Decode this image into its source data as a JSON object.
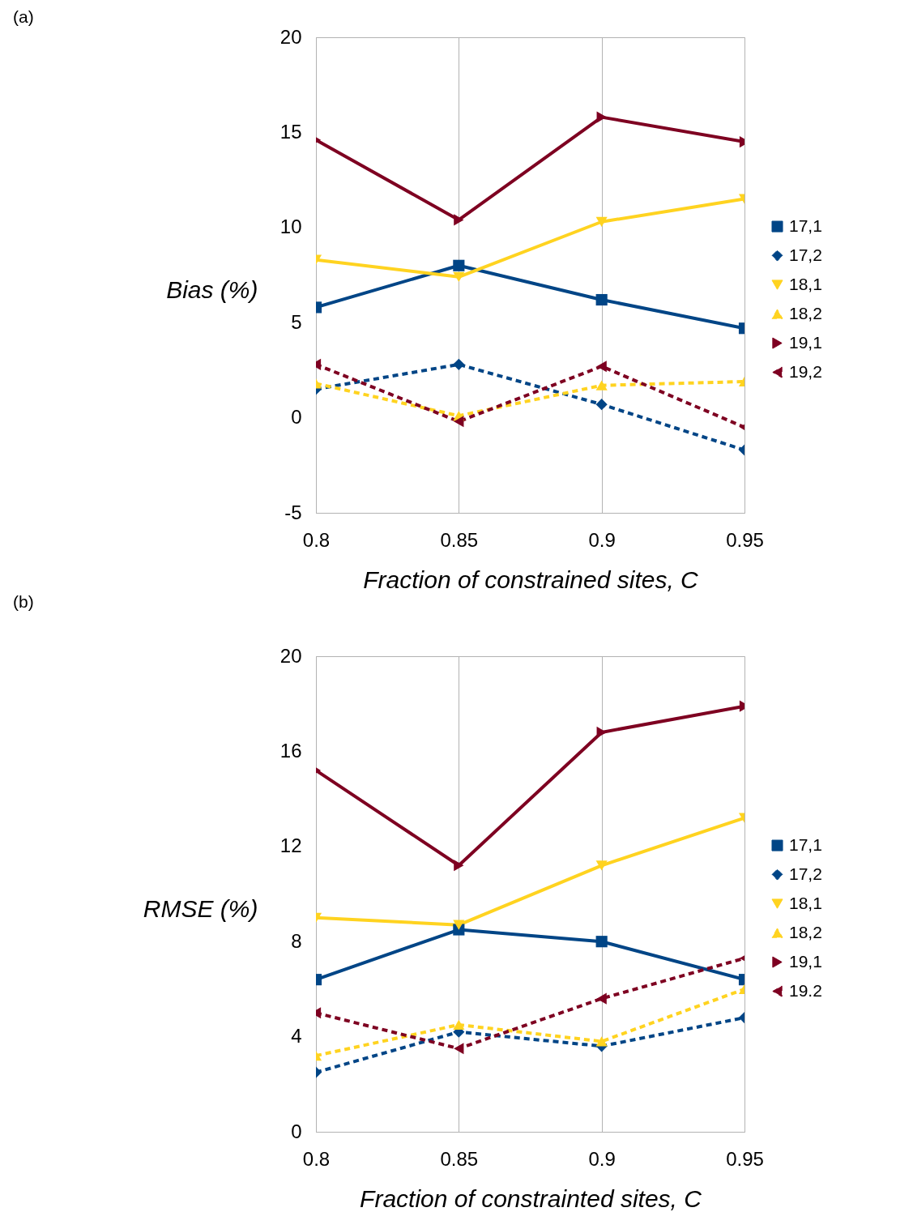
{
  "chart_data": [
    {
      "type": "line",
      "annotations": [
        "(a)"
      ],
      "xlabel": "Fraction of constrained sites, C",
      "ylabel": "Bias (%)",
      "x": [
        0.8,
        0.85,
        0.9,
        0.95
      ],
      "xlim": [
        0.8,
        0.95
      ],
      "xticks": [
        0.8,
        0.85,
        0.9,
        0.95
      ],
      "ylim": [
        -5,
        20
      ],
      "yticks": [
        -5,
        0,
        5,
        10,
        15,
        20
      ],
      "grid": "x",
      "legend": "right",
      "series": [
        {
          "name": "17,1",
          "color": "#004586",
          "marker": "square",
          "line_style": "solid",
          "values": [
            5.8,
            8.0,
            6.2,
            4.7
          ]
        },
        {
          "name": "17,2",
          "color": "#004586",
          "marker": "diamond",
          "line_style": "dashed",
          "values": [
            1.5,
            2.8,
            0.7,
            -1.7
          ]
        },
        {
          "name": "18,1",
          "color": "#ffd320",
          "marker": "triangle-down",
          "line_style": "solid",
          "values": [
            8.3,
            7.4,
            10.3,
            11.5
          ]
        },
        {
          "name": "18,2",
          "color": "#ffd320",
          "marker": "triangle-up",
          "line_style": "dashed",
          "values": [
            1.8,
            0.1,
            1.7,
            1.9
          ]
        },
        {
          "name": "19,1",
          "color": "#7e0021",
          "marker": "triangle-right",
          "line_style": "solid",
          "values": [
            14.6,
            10.4,
            15.8,
            14.5
          ]
        },
        {
          "name": "19,2",
          "color": "#7e0021",
          "marker": "triangle-left",
          "line_style": "dashed",
          "values": [
            2.8,
            -0.2,
            2.7,
            -0.5
          ]
        }
      ]
    },
    {
      "type": "line",
      "annotations": [
        "(b)"
      ],
      "xlabel": "Fraction of constrainted sites, C",
      "ylabel": "RMSE (%)",
      "x": [
        0.8,
        0.85,
        0.9,
        0.95
      ],
      "xlim": [
        0.8,
        0.95
      ],
      "xticks": [
        0.8,
        0.85,
        0.9,
        0.95
      ],
      "ylim": [
        0,
        20
      ],
      "yticks": [
        0,
        4,
        8,
        12,
        16,
        20
      ],
      "grid": "x",
      "legend": "right",
      "series": [
        {
          "name": "17,1",
          "color": "#004586",
          "marker": "square",
          "line_style": "solid",
          "values": [
            6.4,
            8.5,
            8.0,
            6.4
          ]
        },
        {
          "name": "17,2",
          "color": "#004586",
          "marker": "diamond",
          "line_style": "dashed",
          "values": [
            2.5,
            4.2,
            3.6,
            4.8
          ]
        },
        {
          "name": "18,1",
          "color": "#ffd320",
          "marker": "triangle-down",
          "line_style": "solid",
          "values": [
            9.0,
            8.7,
            11.2,
            13.2
          ]
        },
        {
          "name": "18,2",
          "color": "#ffd320",
          "marker": "triangle-up",
          "line_style": "dashed",
          "values": [
            3.2,
            4.5,
            3.8,
            6.0
          ]
        },
        {
          "name": "19,1",
          "color": "#7e0021",
          "marker": "triangle-right",
          "line_style": "solid",
          "values": [
            15.2,
            11.2,
            16.8,
            17.9
          ]
        },
        {
          "name": "19.2",
          "color": "#7e0021",
          "marker": "triangle-left",
          "line_style": "dashed",
          "values": [
            5.0,
            3.5,
            5.6,
            7.3
          ]
        }
      ]
    }
  ]
}
